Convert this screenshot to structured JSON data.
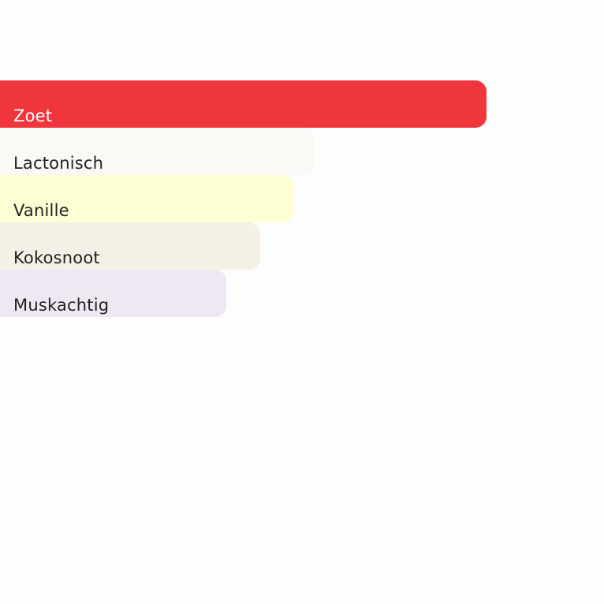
{
  "chart_data": {
    "type": "bar",
    "orientation": "horizontal",
    "categories": [
      "Zoet",
      "Lactonisch",
      "Vanille",
      "Kokosnoot",
      "Muskachtig"
    ],
    "values": [
      1.0,
      0.645,
      0.603,
      0.535,
      0.465
    ],
    "colors": [
      "#F0363D",
      "#FAF9F5",
      "#FEFED5",
      "#F4F0E5",
      "#EFE8F3"
    ],
    "label_colors": [
      "#ffffff",
      "#222222",
      "#222222",
      "#222222",
      "#222222"
    ],
    "grid": false,
    "legend": "none"
  }
}
